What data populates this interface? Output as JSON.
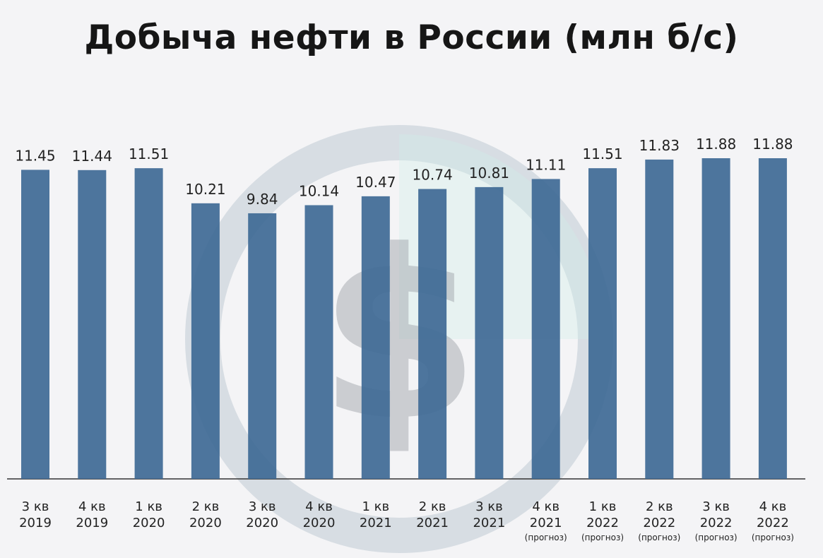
{
  "title": "Добыча нефти в России (млн б/с)",
  "watermark": {
    "icon": "dollar-logo-icon"
  },
  "colors": {
    "bar": "#3f6b96",
    "background": "#f4f4f6",
    "axis": "#333333",
    "text": "#222222"
  },
  "chart_data": {
    "type": "bar",
    "title": "Добыча нефти в России (млн б/с)",
    "categories": [
      {
        "line1": "3 кв",
        "line2": "2019",
        "note": ""
      },
      {
        "line1": "4 кв",
        "line2": "2019",
        "note": ""
      },
      {
        "line1": "1 кв",
        "line2": "2020",
        "note": ""
      },
      {
        "line1": "2 кв",
        "line2": "2020",
        "note": ""
      },
      {
        "line1": "3 кв",
        "line2": "2020",
        "note": ""
      },
      {
        "line1": "4 кв",
        "line2": "2020",
        "note": ""
      },
      {
        "line1": "1 кв",
        "line2": "2021",
        "note": ""
      },
      {
        "line1": "2 кв",
        "line2": "2021",
        "note": ""
      },
      {
        "line1": "3 кв",
        "line2": "2021",
        "note": ""
      },
      {
        "line1": "4 кв",
        "line2": "2021",
        "note": "(прогноз)"
      },
      {
        "line1": "1 кв",
        "line2": "2022",
        "note": "(прогноз)"
      },
      {
        "line1": "2 кв",
        "line2": "2022",
        "note": "(прогноз)"
      },
      {
        "line1": "3 кв",
        "line2": "2022",
        "note": "(прогноз)"
      },
      {
        "line1": "4 кв",
        "line2": "2022",
        "note": "(прогноз)"
      }
    ],
    "values": [
      11.45,
      11.44,
      11.51,
      10.21,
      9.84,
      10.14,
      10.47,
      10.74,
      10.81,
      11.11,
      11.51,
      11.83,
      11.88,
      11.88
    ],
    "value_labels": [
      "11.45",
      "11.44",
      "11.51",
      "10.21",
      "9.84",
      "10.14",
      "10.47",
      "10.74",
      "10.81",
      "11.11",
      "11.51",
      "11.83",
      "11.88",
      "11.88"
    ],
    "ylim": [
      0,
      11.88
    ],
    "grid": false,
    "legend": "none"
  }
}
